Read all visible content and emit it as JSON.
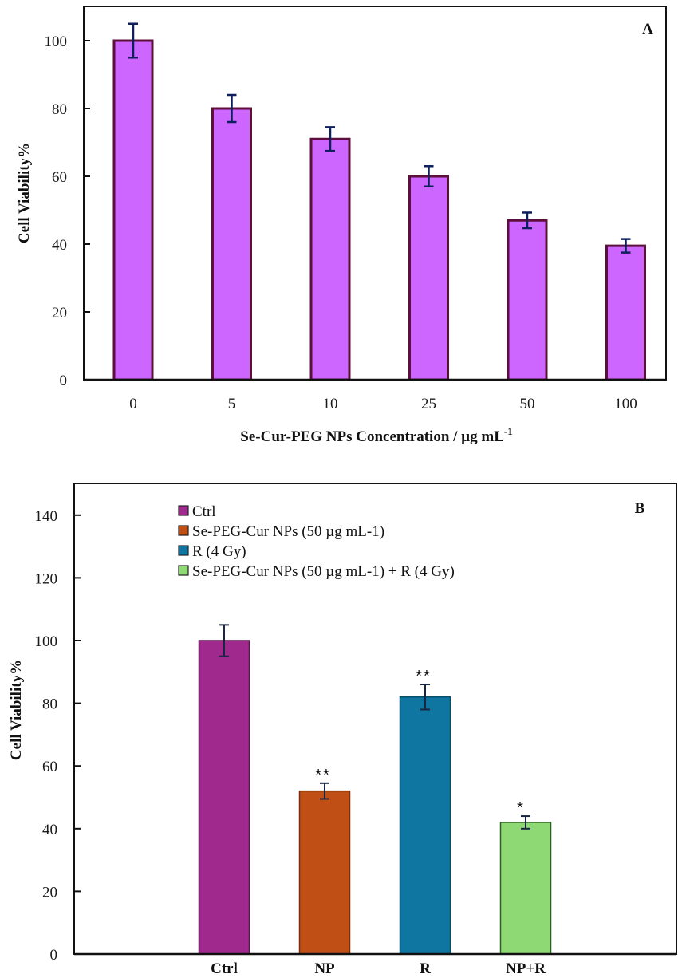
{
  "chart_data": [
    {
      "panel": "A",
      "type": "bar",
      "title": "",
      "panel_label": "A",
      "xlabel": "Se-Cur-PEG NPs Concentration / µg mL",
      "xlabel_superscript": "-1",
      "ylabel": "Cell Viability%",
      "ylim": [
        0,
        110
      ],
      "yticks": [
        0,
        20,
        40,
        60,
        80,
        100
      ],
      "categories": [
        "0",
        "5",
        "10",
        "25",
        "50",
        "100"
      ],
      "values": [
        100,
        80,
        71,
        60,
        47,
        39.5
      ],
      "errors": [
        5,
        4,
        3.5,
        3,
        2.3,
        2
      ],
      "grid": false,
      "colors": {
        "fill": "#cc66ff",
        "stroke": "#5c0f3a",
        "error": "#0d1f5c"
      }
    },
    {
      "panel": "B",
      "type": "bar",
      "title": "",
      "panel_label": "B",
      "xlabel": "",
      "ylabel": "Cell Viability%",
      "ylim": [
        0,
        150
      ],
      "yticks": [
        0,
        20,
        40,
        60,
        80,
        100,
        120,
        140
      ],
      "categories": [
        "Ctrl",
        "NP",
        "R",
        "NP+R"
      ],
      "values": [
        100,
        52,
        82,
        42
      ],
      "errors": [
        5,
        2.5,
        4,
        2
      ],
      "significance": [
        "",
        "**",
        "**",
        "*"
      ],
      "grid": false,
      "legend_position": "top-left",
      "legend": [
        {
          "label": "Ctrl",
          "color": "#a0298e"
        },
        {
          "label": "Se-PEG-Cur NPs (50 µg mL-1)",
          "color": "#c04f16"
        },
        {
          "label": "R (4 Gy)",
          "color": "#0e76a0"
        },
        {
          "label": "Se-PEG-Cur NPs (50 µg mL-1) + R (4 Gy)",
          "color": "#8fd975"
        }
      ],
      "colors": {
        "error": "#1a2540",
        "strokes": [
          "#5c1450",
          "#7a2e0a",
          "#0a4e6e",
          "#2e5e22"
        ]
      }
    }
  ]
}
